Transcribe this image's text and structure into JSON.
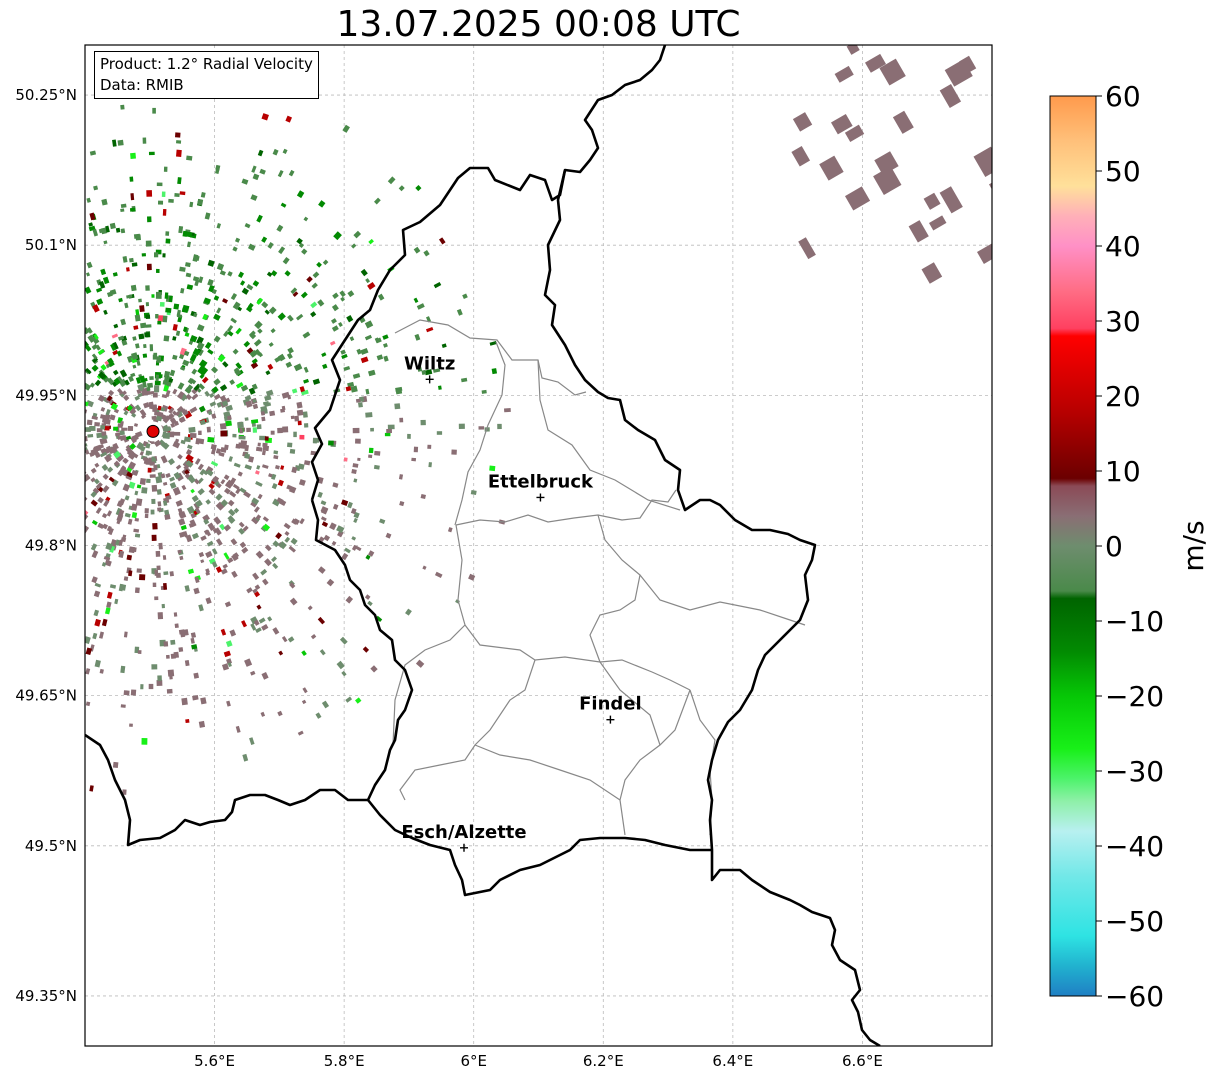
{
  "title": "13.07.2025 00:08 UTC",
  "info": {
    "product": "Product: 1.2° Radial Velocity",
    "source": "Data: RMIB"
  },
  "map": {
    "lon_range": [
      5.4,
      6.8
    ],
    "lat_range": [
      49.3,
      50.3
    ],
    "x_ticks": [
      {
        "lon": 5.6,
        "label": "5.6°E"
      },
      {
        "lon": 5.8,
        "label": "5.8°E"
      },
      {
        "lon": 6.0,
        "label": "6°E"
      },
      {
        "lon": 6.2,
        "label": "6.2°E"
      },
      {
        "lon": 6.4,
        "label": "6.4°E"
      },
      {
        "lon": 6.6,
        "label": "6.6°E"
      }
    ],
    "y_ticks": [
      {
        "lat": 50.25,
        "label": "50.25°N"
      },
      {
        "lat": 50.1,
        "label": "50.1°N"
      },
      {
        "lat": 49.95,
        "label": "49.95°N"
      },
      {
        "lat": 49.8,
        "label": "49.8°N"
      },
      {
        "lat": 49.65,
        "label": "49.65°N"
      },
      {
        "lat": 49.5,
        "label": "49.5°N"
      },
      {
        "lat": 49.35,
        "label": "49.35°N"
      }
    ],
    "radar_site": {
      "lon": 5.505,
      "lat": 49.914
    },
    "cities": [
      {
        "name": "Wiltz",
        "lon": 5.932,
        "lat": 49.966
      },
      {
        "name": "Ettelbruck",
        "lon": 6.103,
        "lat": 49.848
      },
      {
        "name": "Findel",
        "lon": 6.211,
        "lat": 49.626
      },
      {
        "name": "Esch/Alzette",
        "lon": 5.985,
        "lat": 49.498
      }
    ]
  },
  "colorbar": {
    "label": "m/s",
    "min": -60,
    "max": 60,
    "ticks": [
      60,
      50,
      40,
      30,
      20,
      10,
      0,
      -10,
      -20,
      -30,
      -40,
      -50,
      -60
    ],
    "tick_labels": [
      "60",
      "50",
      "40",
      "30",
      "20",
      "10",
      "0",
      "−10",
      "−20",
      "−30",
      "−40",
      "−50",
      "−60"
    ],
    "stops": [
      {
        "v": -60,
        "c": "#1f7fc4"
      },
      {
        "v": -56,
        "c": "#21b2cf"
      },
      {
        "v": -52,
        "c": "#2ee3e3"
      },
      {
        "v": -44,
        "c": "#72e8e8"
      },
      {
        "v": -38,
        "c": "#b8f0f0"
      },
      {
        "v": -34,
        "c": "#8ef0a8"
      },
      {
        "v": -31,
        "c": "#4cf36a"
      },
      {
        "v": -27,
        "c": "#18f018"
      },
      {
        "v": -20,
        "c": "#06c706"
      },
      {
        "v": -14,
        "c": "#028a02"
      },
      {
        "v": -7,
        "c": "#006400"
      },
      {
        "v": -6,
        "c": "#4a8a4a"
      },
      {
        "v": 0,
        "c": "#6e8d6e"
      },
      {
        "v": 4,
        "c": "#8a6e74"
      },
      {
        "v": 8,
        "c": "#8b4a56"
      },
      {
        "v": 9,
        "c": "#6b0000"
      },
      {
        "v": 18,
        "c": "#b80000"
      },
      {
        "v": 28,
        "c": "#ff0000"
      },
      {
        "v": 29,
        "c": "#ff4060"
      },
      {
        "v": 34,
        "c": "#ff6d85"
      },
      {
        "v": 40,
        "c": "#ff90c6"
      },
      {
        "v": 44,
        "c": "#ffb0b8"
      },
      {
        "v": 48,
        "c": "#ffe09a"
      },
      {
        "v": 54,
        "c": "#ffc07a"
      },
      {
        "v": 60,
        "c": "#ff9a4c"
      }
    ]
  }
}
